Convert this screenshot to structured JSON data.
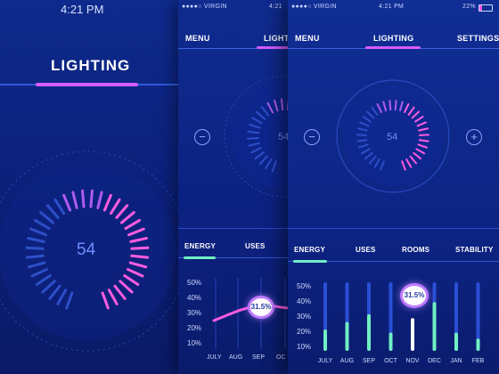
{
  "screen1": {
    "time": "4:21 PM",
    "title": "LIGHTING",
    "dial_value": "54"
  },
  "screen2": {
    "status_carrier": "●●●●○ VIRGIN",
    "status_time": "4:21",
    "nav": {
      "menu": "MENU",
      "active": "LIGHTI"
    },
    "dial_value": "54",
    "tabs": {
      "energy": "ENERGY",
      "uses": "USES"
    },
    "chart_data": {
      "type": "line",
      "categories": [
        "JULY",
        "AUG",
        "SEP",
        "OC"
      ],
      "y_ticks": [
        "50%",
        "40%",
        "30%",
        "20%",
        "10%"
      ],
      "ylim": [
        10,
        50
      ],
      "highlight_label": "31.5%"
    }
  },
  "screen3": {
    "status_carrier": "●●●●○ VIRGIN",
    "status_time": "4:21 PM",
    "status_battery": "22%",
    "nav": {
      "menu": "MENU",
      "lighting": "LIGHTING",
      "settings": "SETTINGS"
    },
    "dial_value": "54",
    "buttons": {
      "minus": "−",
      "plus": "+"
    },
    "tabs": {
      "energy": "ENERGY",
      "uses": "USES",
      "rooms": "ROOMS",
      "stability": "STABILITY"
    },
    "chart_data": {
      "type": "bar",
      "categories": [
        "JULY",
        "AUG",
        "SEP",
        "OCT",
        "NOV",
        "DEC",
        "JAN",
        "FEB"
      ],
      "values": [
        24,
        29,
        34,
        22,
        31.5,
        42,
        22,
        18
      ],
      "ylim": [
        10,
        55
      ],
      "y_ticks": [
        "50%",
        "40%",
        "30%",
        "20%",
        "10%"
      ],
      "highlight_index": 4,
      "highlight_label": "31.5%",
      "colors": {
        "track": "#2a4fd6",
        "fill": "#6ff0c4",
        "accent": "#ff5ce0"
      }
    }
  },
  "colors": {
    "accent": "#ff5ce0",
    "tab_underline": "#6ff0c4",
    "active_underline": "#d65cff"
  }
}
